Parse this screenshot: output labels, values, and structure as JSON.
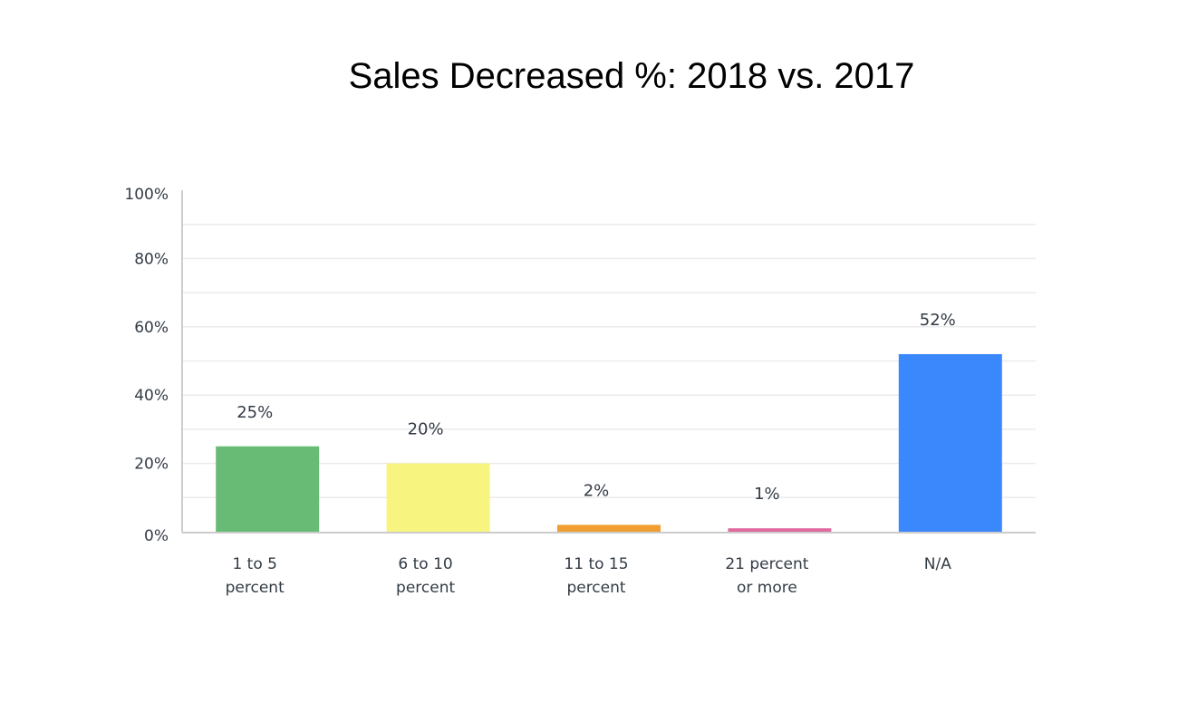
{
  "chart_data": {
    "type": "bar",
    "title": "Sales Decreased %: 2018 vs. 2017",
    "xlabel": "",
    "ylabel": "",
    "categories": [
      [
        "1 to 5",
        "percent"
      ],
      [
        "6 to 10",
        "percent"
      ],
      [
        "11 to 15",
        "percent"
      ],
      [
        "21 percent",
        "or more"
      ],
      [
        "N/A"
      ]
    ],
    "values": [
      25,
      20,
      2,
      1,
      52
    ],
    "data_labels": [
      "25%",
      "20%",
      "2%",
      "1%",
      "52%"
    ],
    "colors": [
      "#68bb74",
      "#f7f580",
      "#f09d32",
      "#e0699f",
      "#3b88fd"
    ],
    "ylim": [
      0,
      100
    ],
    "yticks": [
      0,
      20,
      40,
      60,
      80,
      100
    ],
    "ytick_labels": [
      "0%",
      "20%",
      "40%",
      "60%",
      "80%",
      "100%"
    ],
    "minor_grid_step": 10,
    "grid": true,
    "legend": "none"
  }
}
